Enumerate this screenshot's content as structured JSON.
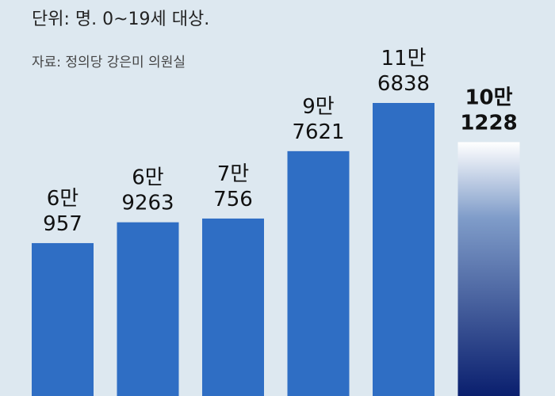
{
  "header": {
    "unit_note": "단위: 명. 0~19세 대상.",
    "source_note": "자료: 정의당 강은미 의원실"
  },
  "colors": {
    "background": "#dde8f0",
    "bar": "#2f6ec4",
    "bar_highlight_top": "#ffffff",
    "bar_highlight_bottom": "#0a1f6e",
    "text": "#111111"
  },
  "chart_data": {
    "type": "bar",
    "title": "",
    "xlabel": "",
    "ylabel": "",
    "values": [
      60957,
      69263,
      70756,
      97621,
      116838,
      101228
    ],
    "value_labels": [
      [
        "6만",
        "957"
      ],
      [
        "6만",
        "9263"
      ],
      [
        "7만",
        "756"
      ],
      [
        "9만",
        "7621"
      ],
      [
        "11만",
        "6838"
      ],
      [
        "10만",
        "1228"
      ]
    ],
    "highlight_index": 5,
    "ylim": [
      0,
      125000
    ],
    "grid": false,
    "legend": "none"
  }
}
